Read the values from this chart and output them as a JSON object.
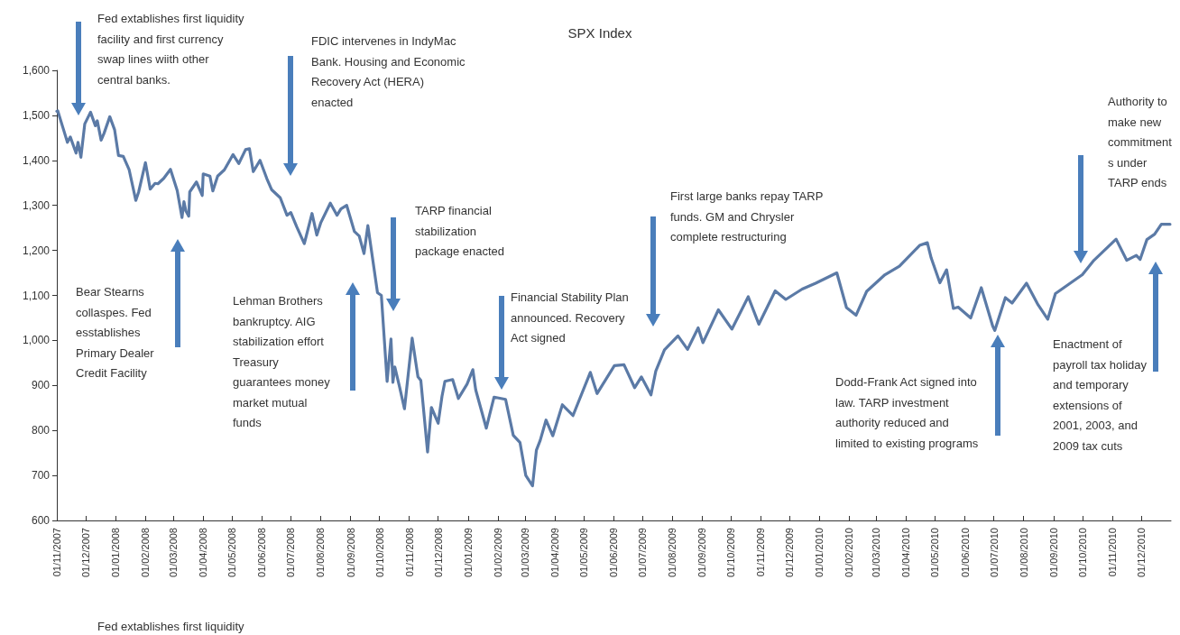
{
  "chart_data": {
    "type": "line",
    "title": "SPX Index",
    "color": "#5b7aa6",
    "grid": false,
    "marker": "none",
    "line_style": "solid",
    "x": [
      "2007-11-01",
      "2007-11-02",
      "2007-11-07",
      "2007-11-12",
      "2007-11-15",
      "2007-11-21",
      "2007-11-23",
      "2007-11-26",
      "2007-11-30",
      "2007-12-06",
      "2007-12-11",
      "2007-12-13",
      "2007-12-17",
      "2007-12-20",
      "2007-12-26",
      "2007-12-31",
      "2008-01-04",
      "2008-01-09",
      "2008-01-15",
      "2008-01-22",
      "2008-01-25",
      "2008-02-01",
      "2008-02-06",
      "2008-02-11",
      "2008-02-14",
      "2008-02-20",
      "2008-02-27",
      "2008-03-05",
      "2008-03-10",
      "2008-03-12",
      "2008-03-14",
      "2008-03-17",
      "2008-03-18",
      "2008-03-25",
      "2008-03-31",
      "2008-04-01",
      "2008-04-08",
      "2008-04-11",
      "2008-04-16",
      "2008-04-23",
      "2008-05-02",
      "2008-05-08",
      "2008-05-15",
      "2008-05-19",
      "2008-05-23",
      "2008-05-30",
      "2008-06-06",
      "2008-06-11",
      "2008-06-20",
      "2008-06-27",
      "2008-07-01",
      "2008-07-07",
      "2008-07-15",
      "2008-07-23",
      "2008-07-28",
      "2008-08-01",
      "2008-08-11",
      "2008-08-18",
      "2008-08-22",
      "2008-08-28",
      "2008-09-05",
      "2008-09-10",
      "2008-09-15",
      "2008-09-19",
      "2008-09-29",
      "2008-10-03",
      "2008-10-09",
      "2008-10-13",
      "2008-10-15",
      "2008-10-17",
      "2008-10-22",
      "2008-10-27",
      "2008-11-04",
      "2008-11-10",
      "2008-11-13",
      "2008-11-20",
      "2008-11-24",
      "2008-12-01",
      "2008-12-05",
      "2008-12-08",
      "2008-12-16",
      "2008-12-22",
      "2008-12-31",
      "2009-01-06",
      "2009-01-09",
      "2009-01-20",
      "2009-01-23",
      "2009-01-28",
      "2009-02-09",
      "2009-02-17",
      "2009-02-24",
      "2009-03-02",
      "2009-03-09",
      "2009-03-13",
      "2009-03-17",
      "2009-03-23",
      "2009-03-30",
      "2009-04-09",
      "2009-04-20",
      "2009-05-08",
      "2009-05-15",
      "2009-06-02",
      "2009-06-12",
      "2009-06-23",
      "2009-06-30",
      "2009-07-10",
      "2009-07-15",
      "2009-07-24",
      "2009-08-07",
      "2009-08-17",
      "2009-08-28",
      "2009-09-02",
      "2009-09-18",
      "2009-10-02",
      "2009-10-19",
      "2009-10-30",
      "2009-11-16",
      "2009-11-27",
      "2009-12-14",
      "2009-12-28",
      "2010-01-19",
      "2010-01-29",
      "2010-02-08",
      "2010-02-19",
      "2010-03-10",
      "2010-03-25",
      "2010-04-15",
      "2010-04-23",
      "2010-04-27",
      "2010-05-06",
      "2010-05-13",
      "2010-05-20",
      "2010-05-25",
      "2010-06-07",
      "2010-06-18",
      "2010-06-30",
      "2010-07-02",
      "2010-07-13",
      "2010-07-20",
      "2010-08-04",
      "2010-08-16",
      "2010-08-26",
      "2010-09-03",
      "2010-09-17",
      "2010-10-01",
      "2010-10-13",
      "2010-11-05",
      "2010-11-16",
      "2010-11-26",
      "2010-11-30",
      "2010-12-07",
      "2010-12-15",
      "2010-12-22",
      "2010-12-31"
    ],
    "values": [
      1509,
      1510,
      1475,
      1440,
      1452,
      1416,
      1440,
      1407,
      1481,
      1507,
      1477,
      1488,
      1445,
      1460,
      1497,
      1468,
      1411,
      1409,
      1380,
      1311,
      1330,
      1395,
      1336,
      1349,
      1348,
      1360,
      1380,
      1333,
      1273,
      1308,
      1288,
      1276,
      1330,
      1352,
      1322,
      1370,
      1365,
      1332,
      1365,
      1379,
      1413,
      1393,
      1424,
      1426,
      1375,
      1400,
      1360,
      1335,
      1317,
      1278,
      1284,
      1253,
      1215,
      1282,
      1234,
      1261,
      1305,
      1278,
      1292,
      1300,
      1242,
      1232,
      1193,
      1255,
      1106,
      1100,
      909,
      1003,
      907,
      941,
      896,
      848,
      1005,
      919,
      911,
      752,
      851,
      816,
      876,
      909,
      913,
      871,
      903,
      935,
      890,
      805,
      831,
      874,
      869,
      789,
      773,
      700,
      677,
      756,
      778,
      823,
      788,
      857,
      833,
      929,
      882,
      944,
      946,
      895,
      919,
      879,
      932,
      979,
      1010,
      980,
      1028,
      995,
      1068,
      1025,
      1097,
      1036,
      1110,
      1091,
      1114,
      1127,
      1150,
      1073,
      1056,
      1109,
      1146,
      1165,
      1211,
      1217,
      1183,
      1128,
      1157,
      1071,
      1074,
      1050,
      1117,
      1031,
      1022,
      1095,
      1083,
      1127,
      1079,
      1047,
      1104,
      1125,
      1146,
      1178,
      1225,
      1178,
      1189,
      1180,
      1224,
      1236,
      1258,
      1258
    ],
    "xlim": [
      "2007-11-01",
      "2011-01-01"
    ],
    "xticks": [
      {
        "value": "2007-11-01",
        "label": "01/11/2007"
      },
      {
        "value": "2007-12-01",
        "label": "01/12/2007"
      },
      {
        "value": "2008-01-01",
        "label": "01/01/2008"
      },
      {
        "value": "2008-02-01",
        "label": "01/02/2008"
      },
      {
        "value": "2008-03-01",
        "label": "01/03/2008"
      },
      {
        "value": "2008-04-01",
        "label": "01/04/2008"
      },
      {
        "value": "2008-05-01",
        "label": "01/05/2008"
      },
      {
        "value": "2008-06-01",
        "label": "01/06/2008"
      },
      {
        "value": "2008-07-01",
        "label": "01/07/2008"
      },
      {
        "value": "2008-08-01",
        "label": "01/08/2008"
      },
      {
        "value": "2008-09-01",
        "label": "01/09/2008"
      },
      {
        "value": "2008-10-01",
        "label": "01/10/2008"
      },
      {
        "value": "2008-11-01",
        "label": "01/11/2008"
      },
      {
        "value": "2008-12-01",
        "label": "01/12/2008"
      },
      {
        "value": "2009-01-01",
        "label": "01/01/2009"
      },
      {
        "value": "2009-02-01",
        "label": "01/02/2009"
      },
      {
        "value": "2009-03-01",
        "label": "01/03/2009"
      },
      {
        "value": "2009-04-01",
        "label": "01/04/2009"
      },
      {
        "value": "2009-05-01",
        "label": "01/05/2009"
      },
      {
        "value": "2009-06-01",
        "label": "01/06/2009"
      },
      {
        "value": "2009-07-01",
        "label": "01/07/2009"
      },
      {
        "value": "2009-08-01",
        "label": "01/08/2009"
      },
      {
        "value": "2009-09-01",
        "label": "01/09/2009"
      },
      {
        "value": "2009-10-01",
        "label": "01/10/2009"
      },
      {
        "value": "2009-11-01",
        "label": "01/11/2009"
      },
      {
        "value": "2009-12-01",
        "label": "01/12/2009"
      },
      {
        "value": "2010-01-01",
        "label": "01/01/2010"
      },
      {
        "value": "2010-02-01",
        "label": "01/02/2010"
      },
      {
        "value": "2010-03-01",
        "label": "01/03/2010"
      },
      {
        "value": "2010-04-01",
        "label": "01/04/2010"
      },
      {
        "value": "2010-05-01",
        "label": "01/05/2010"
      },
      {
        "value": "2010-06-01",
        "label": "01/06/2010"
      },
      {
        "value": "2010-07-01",
        "label": "01/07/2010"
      },
      {
        "value": "2010-08-01",
        "label": "01/08/2010"
      },
      {
        "value": "2010-09-01",
        "label": "01/09/2010"
      },
      {
        "value": "2010-10-01",
        "label": "01/10/2010"
      },
      {
        "value": "2010-11-01",
        "label": "01/11/2010"
      },
      {
        "value": "2010-12-01",
        "label": "01/12/2010"
      }
    ],
    "ylim": [
      600,
      1600
    ],
    "yticks": [
      600,
      700,
      800,
      900,
      {
        "value": 1000,
        "label": "1,000"
      },
      {
        "value": 1100,
        "label": "1,100"
      },
      {
        "value": 1200,
        "label": "1,200"
      },
      {
        "value": 1300,
        "label": "1,300"
      },
      {
        "value": 1400,
        "label": "1,400"
      },
      {
        "value": 1500,
        "label": "1,500"
      },
      {
        "value": 1600,
        "label": "1,600"
      }
    ],
    "annotations": [
      "Fed extablishes first liquidity facility and first currency swap lines wiith other central banks.",
      "Bear Stearns collaspes. Fed esstablishes Primary Dealer Credit Facility",
      "FDIC intervenes in IndyMac Bank. Housing and Economic Recovery Act (HERA) enacted",
      "Lehman Brothers bankruptcy. AIG stabilization effort Treasury guarantees money market mutual funds",
      "TARP financial stabilization package enacted",
      "Financial Stability Plan announced. Recovery Act signed",
      "First large banks repay TARP funds. GM and Chrysler complete restructuring",
      "Dodd‑Frank Act signed into law. TARP investment authority reduced and limited to existing programs",
      "Authority to make new commitment s under TARP ends",
      "Enactment of payroll tax holiday and temporary extensions of 2001, 2003, and 2009 tax cuts",
      "Fed extablishes first liquidity"
    ]
  }
}
